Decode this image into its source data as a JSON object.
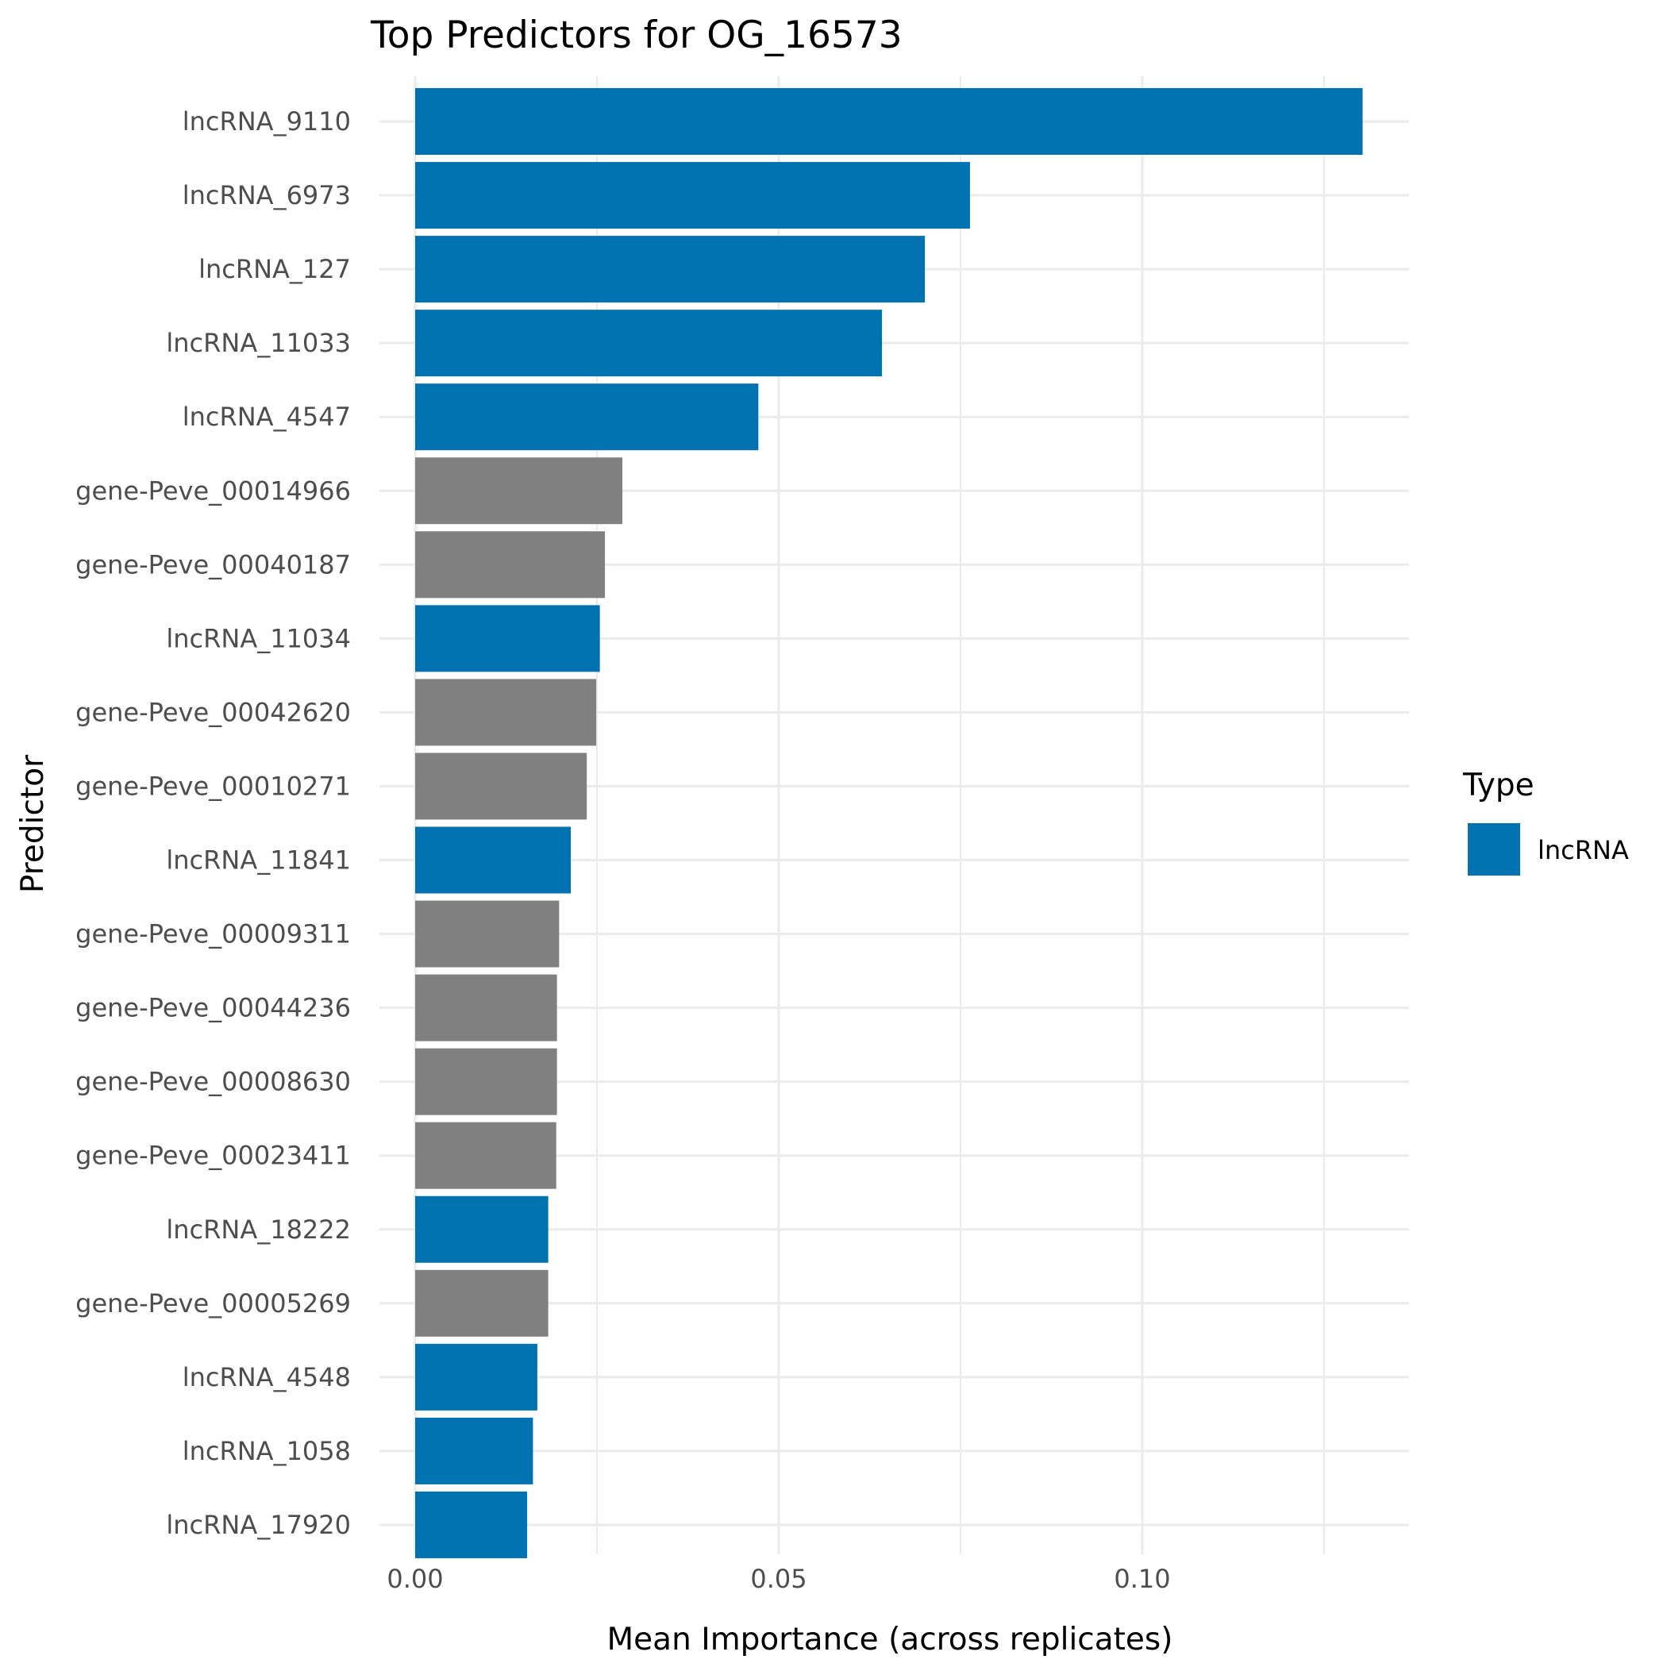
{
  "chart_data": {
    "type": "bar",
    "orientation": "horizontal",
    "title": "Top Predictors for OG_16573",
    "xlabel": "Mean Importance (across replicates)",
    "ylabel": "Predictor",
    "xlim": [
      0,
      0.137
    ],
    "x_ticks": [
      0,
      0.05,
      0.1
    ],
    "x_tick_labels": [
      "0.00",
      "0.05",
      "0.10"
    ],
    "grid": true,
    "legend": {
      "title": "Type",
      "placement": "right",
      "entries": [
        {
          "label": "lncRNA",
          "color": "#0072B2"
        }
      ]
    },
    "colors": {
      "lncRNA": "#0072B2",
      "gene": "#808080"
    },
    "categories": [
      "lncRNA_9110",
      "lncRNA_6973",
      "lncRNA_127",
      "lncRNA_11033",
      "lncRNA_4547",
      "gene-Peve_00014966",
      "gene-Peve_00040187",
      "lncRNA_11034",
      "gene-Peve_00042620",
      "gene-Peve_00010271",
      "lncRNA_11841",
      "gene-Peve_00009311",
      "gene-Peve_00044236",
      "gene-Peve_00008630",
      "gene-Peve_00023411",
      "lncRNA_18222",
      "gene-Peve_00005269",
      "lncRNA_4548",
      "lncRNA_1058",
      "lncRNA_17920"
    ],
    "values": [
      0.1303,
      0.0763,
      0.0701,
      0.0642,
      0.0472,
      0.0285,
      0.0261,
      0.0254,
      0.0249,
      0.0236,
      0.0214,
      0.0198,
      0.0195,
      0.0195,
      0.0194,
      0.0183,
      0.0183,
      0.0168,
      0.0162,
      0.0154
    ],
    "types": [
      "lncRNA",
      "lncRNA",
      "lncRNA",
      "lncRNA",
      "lncRNA",
      "gene",
      "gene",
      "lncRNA",
      "gene",
      "gene",
      "lncRNA",
      "gene",
      "gene",
      "gene",
      "gene",
      "lncRNA",
      "gene",
      "lncRNA",
      "lncRNA",
      "lncRNA"
    ]
  }
}
